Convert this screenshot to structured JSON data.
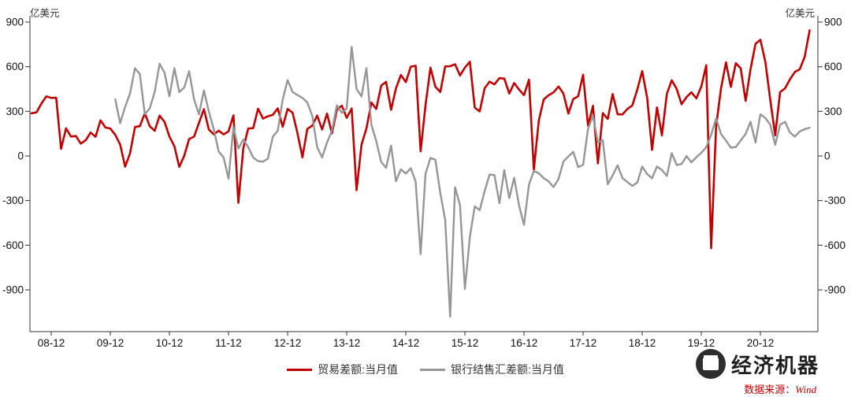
{
  "source": {
    "prefix": "数据来源：",
    "name": "Wind",
    "color": "#c00000"
  },
  "watermark": {
    "text": "经济机器"
  },
  "chart_data": {
    "type": "line",
    "title": "",
    "ylabel": "亿美元",
    "x_start": "2008-08",
    "x_end": "2021-10",
    "x_frequency": "monthly",
    "x_tick_labels": [
      "08-12",
      "09-12",
      "10-12",
      "11-12",
      "12-12",
      "13-12",
      "14-12",
      "15-12",
      "16-12",
      "17-12",
      "18-12",
      "19-12",
      "20-12"
    ],
    "x_tick_month_indices": [
      4,
      16,
      28,
      40,
      52,
      64,
      76,
      88,
      100,
      112,
      124,
      136,
      148
    ],
    "y_ticks": [
      900,
      600,
      300,
      0,
      -300,
      -600,
      -900
    ],
    "ylim": [
      -1150,
      950
    ],
    "grid": false,
    "y_ticks_both_sides": true,
    "legend_position": "bottom",
    "series": [
      {
        "name": "贸易差额:当月值",
        "color": "#c00000",
        "width": 2.6,
        "values": [
          287,
          293,
          352,
          401,
          390,
          391,
          48,
          186,
          131,
          134,
          83,
          106,
          157,
          129,
          240,
          191,
          184,
          142,
          76,
          -72,
          17,
          195,
          200,
          287,
          200,
          169,
          271,
          229,
          131,
          65,
          -73,
          1,
          114,
          130,
          223,
          315,
          178,
          145,
          170,
          145,
          165,
          273,
          -315,
          53,
          184,
          187,
          317,
          251,
          267,
          277,
          320,
          196,
          316,
          291,
          153,
          -9,
          182,
          204,
          271,
          178,
          285,
          152,
          311,
          338,
          256,
          319,
          -230,
          77,
          185,
          359,
          316,
          473,
          498,
          310,
          454,
          545,
          496,
          600,
          606,
          31,
          341,
          594,
          465,
          430,
          602,
          603,
          616,
          541,
          594,
          633,
          325,
          299,
          455,
          500,
          481,
          523,
          520,
          420,
          490,
          446,
          409,
          513,
          -91,
          239,
          380,
          408,
          427,
          467,
          420,
          285,
          382,
          402,
          546,
          203,
          337,
          -50,
          288,
          249,
          416,
          280,
          279,
          316,
          340,
          447,
          570,
          391,
          41,
          326,
          138,
          417,
          509,
          450,
          348,
          396,
          428,
          387,
          467,
          610,
          -620,
          199,
          453,
          629,
          464,
          623,
          589,
          370,
          584,
          754,
          781,
          632,
          378,
          138,
          429,
          455,
          515,
          565,
          583,
          668,
          845
        ]
      },
      {
        "name": "银行结售汇差额:当月值",
        "color": "#969696",
        "width": 2.4,
        "values": [
          null,
          null,
          null,
          null,
          null,
          null,
          null,
          null,
          null,
          null,
          null,
          null,
          null,
          null,
          null,
          null,
          null,
          380,
          220,
          330,
          420,
          590,
          550,
          280,
          320,
          430,
          620,
          560,
          400,
          590,
          430,
          460,
          570,
          380,
          280,
          440,
          300,
          180,
          30,
          -10,
          -153,
          194,
          50,
          110,
          60,
          -10,
          -35,
          -38,
          -17,
          130,
          170,
          380,
          510,
          430,
          410,
          390,
          360,
          270,
          60,
          -10,
          90,
          170,
          340,
          290,
          320,
          733,
          450,
          400,
          590,
          210,
          100,
          -40,
          -80,
          70,
          -170,
          -90,
          -118,
          -82,
          -172,
          -660,
          -120,
          -13,
          -25,
          -250,
          -430,
          -1080,
          -210,
          -330,
          -894,
          -544,
          -339,
          -364,
          -237,
          -125,
          -128,
          -317,
          -95,
          -284,
          -146,
          -334,
          -463,
          -192,
          -101,
          -116,
          -149,
          -171,
          -209,
          -155,
          -38,
          -3,
          28,
          -75,
          -60,
          183,
          270,
          92,
          106,
          -190,
          -131,
          -63,
          -149,
          -176,
          -201,
          -179,
          -71,
          -122,
          -150,
          -71,
          -94,
          -135,
          19,
          -61,
          -54,
          -1,
          -43,
          -8,
          21,
          59,
          142,
          252,
          148,
          104,
          56,
          60,
          104,
          148,
          230,
          90,
          280,
          255,
          210,
          75,
          210,
          230,
          158,
          130,
          165,
          180,
          190
        ]
      }
    ]
  }
}
